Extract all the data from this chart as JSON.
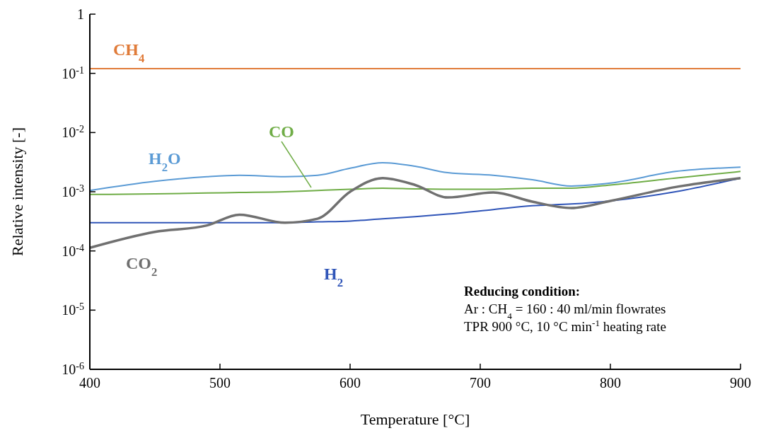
{
  "chart_data": {
    "type": "line",
    "xlabel": "Temperature [°C]",
    "ylabel": "Relative intensity [-]",
    "log": "y",
    "grid": false,
    "legend": false,
    "line_style": "solid",
    "marker": "none",
    "xlim": [
      400,
      900
    ],
    "xticks": [
      400,
      500,
      600,
      700,
      800,
      900
    ],
    "ylim": [
      1e-06,
      1
    ],
    "yticks": [
      {
        "value": 1e-06,
        "label": "10$^{-6}$"
      },
      {
        "value": 1e-05,
        "label": "10$^{-5}$"
      },
      {
        "value": 0.0001,
        "label": "10$^{-4}$"
      },
      {
        "value": 0.001,
        "label": "10$^{-3}$"
      },
      {
        "value": 0.01,
        "label": "10$^{-2}$"
      },
      {
        "value": 0.1,
        "label": "10$^{-1}$"
      },
      1
    ],
    "x": [
      400,
      450,
      490,
      515,
      550,
      575,
      600,
      625,
      650,
      675,
      710,
      740,
      770,
      800,
      850,
      900
    ],
    "series": [
      {
        "name": "CH$_{4}$",
        "color": "#e07b39",
        "values": [
          0.12,
          0.12,
          0.12,
          0.12,
          0.12,
          0.12,
          0.12,
          0.12,
          0.12,
          0.12,
          0.12,
          0.12,
          0.12,
          0.12,
          0.12,
          0.12
        ]
      },
      {
        "name": "H$_{2}$O",
        "color": "#5b9bd5",
        "values": [
          0.00105,
          0.0015,
          0.0018,
          0.0019,
          0.0018,
          0.0019,
          0.0025,
          0.0031,
          0.0027,
          0.0021,
          0.0019,
          0.0016,
          0.00125,
          0.0014,
          0.0022,
          0.0026
        ]
      },
      {
        "name": "CO",
        "color": "#70ad47",
        "values": [
          0.0009,
          0.00092,
          0.00095,
          0.00097,
          0.001,
          0.00105,
          0.0011,
          0.00115,
          0.00112,
          0.0011,
          0.0011,
          0.00115,
          0.00115,
          0.0013,
          0.0017,
          0.0022
        ]
      },
      {
        "name": "H$_{2}$",
        "color": "#3055b8",
        "values": [
          0.0003,
          0.0003,
          0.0003,
          0.0003,
          0.0003,
          0.00031,
          0.00032,
          0.00035,
          0.00038,
          0.00042,
          0.0005,
          0.00058,
          0.00062,
          0.0007,
          0.001,
          0.0017
        ]
      },
      {
        "name": "CO$_{2}$",
        "color": "#707070",
        "values": [
          0.000113,
          0.00021,
          0.00027,
          0.00041,
          0.0003,
          0.00035,
          0.001,
          0.0017,
          0.0013,
          0.0008,
          0.00097,
          0.00068,
          0.00053,
          0.0007,
          0.0012,
          0.0017
        ]
      }
    ],
    "annotations": [
      "Reducing condition:",
      "Ar : CH$_{4}$ = 160 : 40 ml/min flowrates",
      "TPR 900 °C, 10 °C min$^{-1}$ heating rate"
    ]
  }
}
